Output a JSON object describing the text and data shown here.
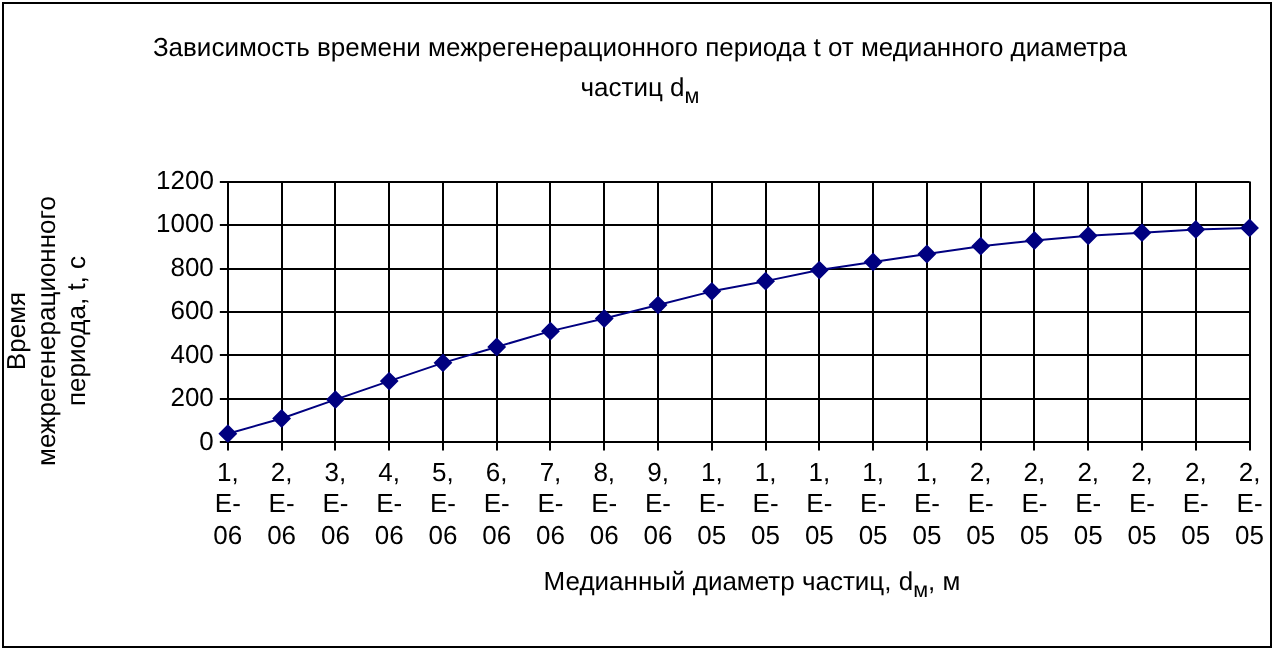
{
  "chart_data": {
    "type": "line",
    "title": "Зависимость времени межрегенерационного периода t от медианного диаметра частиц d$_{м}$",
    "xlabel": "Медианный диаметр частиц, d$_{м}$, м",
    "ylabel": "Время межрегенерационного периода, t, с",
    "categories": [
      "1,E-06",
      "2,E-06",
      "3,E-06",
      "4,E-06",
      "5,E-06",
      "6,E-06",
      "7,E-06",
      "8,E-06",
      "9,E-06",
      "1,E-05",
      "1,E-05",
      "1,E-05",
      "1,E-05",
      "1,E-05",
      "2,E-05",
      "2,E-05",
      "2,E-05",
      "2,E-05",
      "2,E-05",
      "2,E-05"
    ],
    "series": [
      {
        "color": "#000080",
        "values": [
          40,
          110,
          197,
          282,
          366,
          439,
          512,
          570,
          632,
          695,
          742,
          793,
          830,
          867,
          903,
          929,
          951,
          965,
          980,
          987
        ]
      }
    ],
    "ylim": [
      0,
      1200
    ],
    "yticks": [
      0,
      200,
      400,
      600,
      800,
      1000,
      1200
    ],
    "grid": true,
    "legend": false,
    "marker": "diamond",
    "line_style": "solid"
  }
}
